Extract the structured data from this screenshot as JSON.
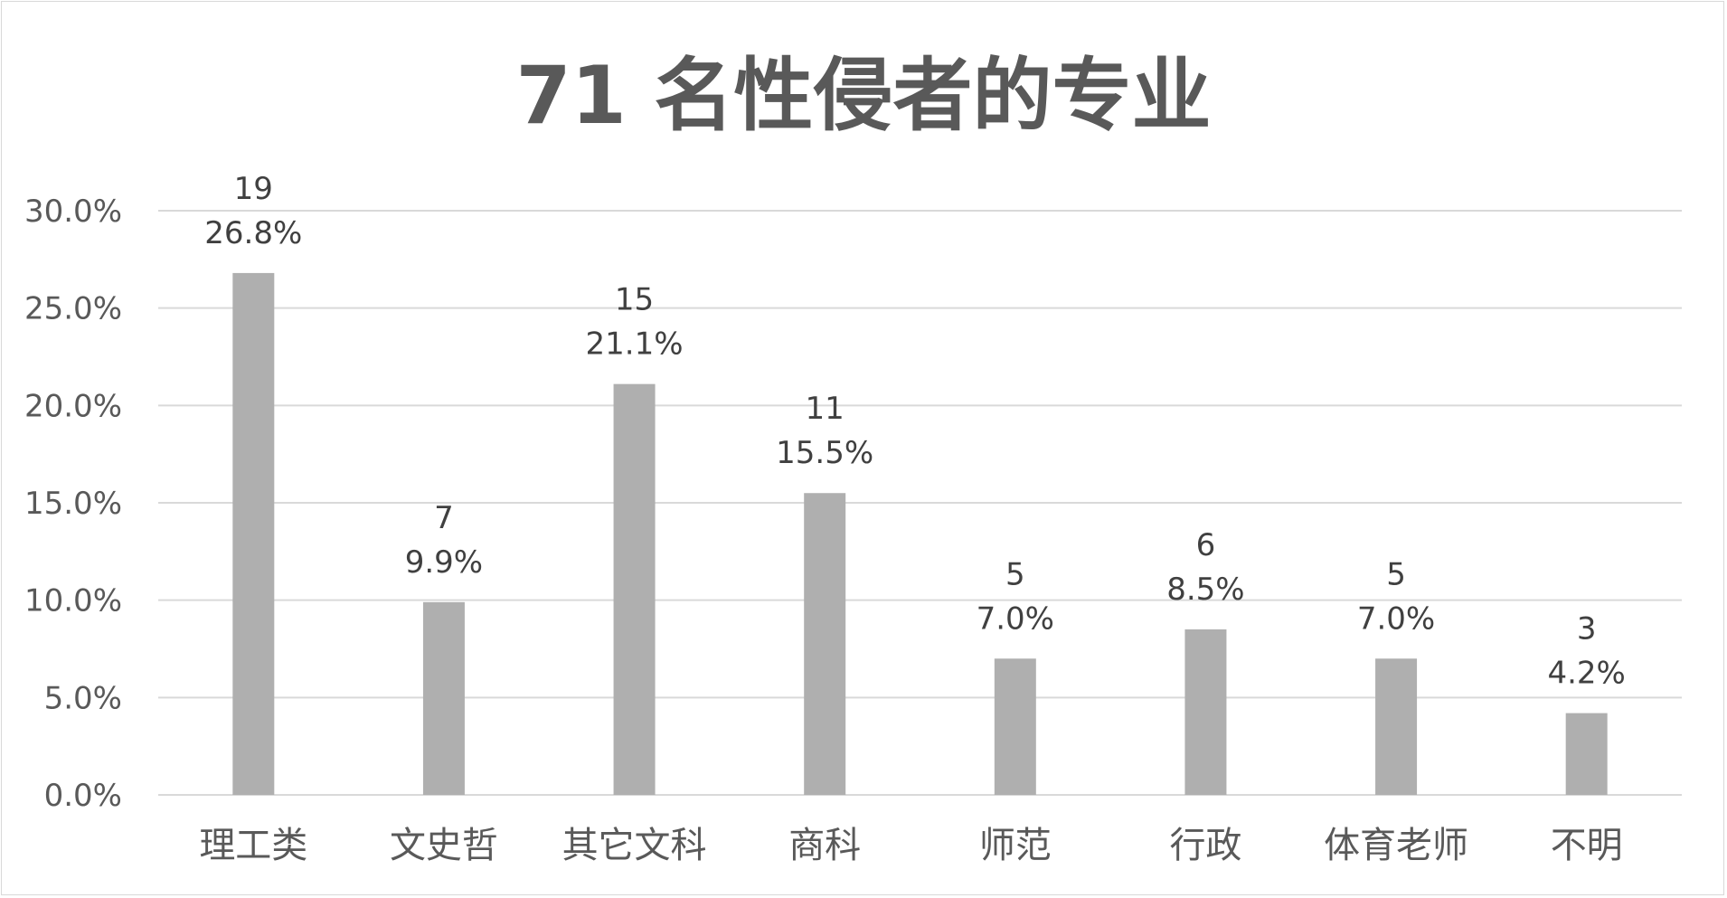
{
  "chart_data": {
    "type": "bar",
    "title": "71 名性侵者的专业",
    "categories": [
      "理工类",
      "文史哲",
      "其它文科",
      "商科",
      "师范",
      "行政",
      "体育老师",
      "不明"
    ],
    "counts": [
      "19",
      "7",
      "15",
      "11",
      "5",
      "6",
      "5",
      "3"
    ],
    "value_labels": [
      "26.8%",
      "9.9%",
      "21.1%",
      "15.5%",
      "7.0%",
      "8.5%",
      "7.0%",
      "4.2%"
    ],
    "values": [
      26.8,
      9.9,
      21.1,
      15.5,
      7.0,
      8.5,
      7.0,
      4.2
    ],
    "ylim": [
      0,
      30
    ],
    "yticks": [
      "0.0%",
      "5.0%",
      "10.0%",
      "15.0%",
      "20.0%",
      "25.0%",
      "30.0%"
    ],
    "ytick_values": [
      0,
      5,
      10,
      15,
      20,
      25,
      30
    ],
    "xlabel": "",
    "ylabel": "",
    "grid": true,
    "bar_color": "#afafaf",
    "grid_color": "#d9d9d9"
  }
}
